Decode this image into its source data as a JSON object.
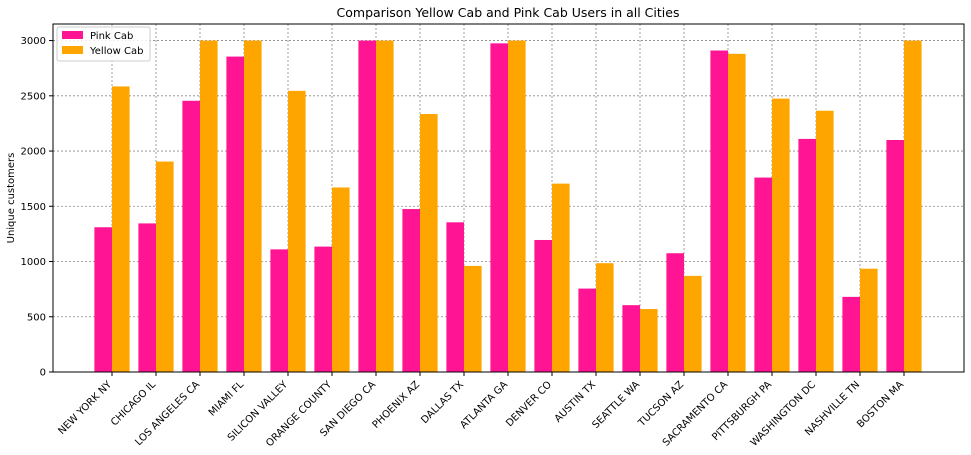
{
  "chart_data": {
    "type": "bar",
    "title": "Comparison Yellow Cab and Pink Cab Users in all Cities",
    "xlabel": "",
    "ylabel": "Unique customers",
    "ylim": [
      0,
      3150
    ],
    "yticks": [
      0,
      500,
      1000,
      1500,
      2000,
      2500,
      3000
    ],
    "grid": true,
    "legend_position": "top-left",
    "categories": [
      "NEW YORK NY",
      "CHICAGO IL",
      "LOS ANGELES CA",
      "MIAMI FL",
      "SILICON VALLEY",
      "ORANGE COUNTY",
      "SAN DIEGO CA",
      "PHOENIX AZ",
      "DALLAS TX",
      "ATLANTA GA",
      "DENVER CO",
      "AUSTIN TX",
      "SEATTLE WA",
      "TUCSON AZ",
      "SACRAMENTO CA",
      "PITTSBURGH PA",
      "WASHINGTON DC",
      "NASHVILLE TN",
      "BOSTON MA"
    ],
    "series": [
      {
        "name": "Pink Cab",
        "color": "#ff1493",
        "values": [
          1310,
          1345,
          2455,
          2855,
          1110,
          1135,
          3000,
          1475,
          1355,
          2975,
          1195,
          755,
          605,
          1075,
          2910,
          1760,
          2110,
          680,
          2100
        ]
      },
      {
        "name": "Yellow Cab",
        "color": "#ffa500",
        "values": [
          2585,
          1905,
          3000,
          3000,
          2545,
          1670,
          3000,
          2335,
          960,
          3000,
          1705,
          985,
          570,
          870,
          2880,
          2475,
          2365,
          935,
          3000
        ]
      }
    ]
  }
}
